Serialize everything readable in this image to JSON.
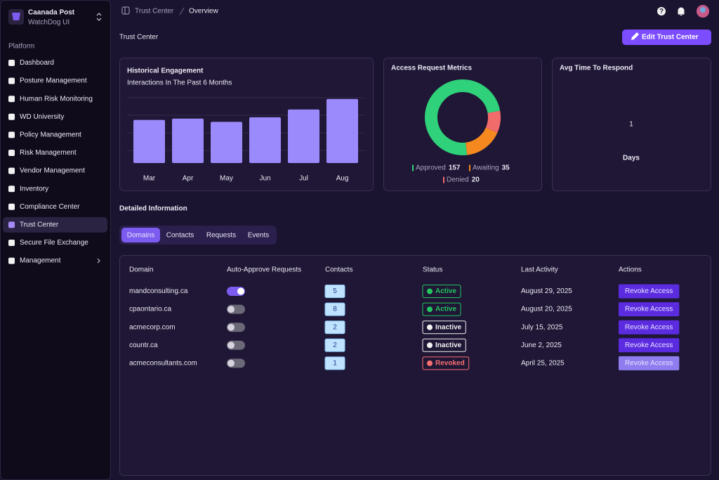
{
  "sidebar": {
    "org_name": "Caanada Post",
    "org_subtitle": "WatchDog UI",
    "section_label": "Platform",
    "nav": [
      {
        "label": "Dashboard",
        "active": false
      },
      {
        "label": "Posture Management",
        "active": false
      },
      {
        "label": "Human Risk Monitoring",
        "active": false
      },
      {
        "label": "WD University",
        "active": false
      },
      {
        "label": "Policy Management",
        "active": false
      },
      {
        "label": "Risk Management",
        "active": false
      },
      {
        "label": "Vendor Management",
        "active": false
      },
      {
        "label": "Inventory",
        "active": false
      },
      {
        "label": "Compliance Center",
        "active": false
      },
      {
        "label": "Trust Center",
        "active": true
      },
      {
        "label": "Secure File Exchange",
        "active": false
      },
      {
        "label": "Management",
        "active": false
      }
    ]
  },
  "topbar": {
    "breadcrumb": [
      "Trust Center",
      "Overview"
    ]
  },
  "header": {
    "title": "Trust Center",
    "button": "Edit Trust Center"
  },
  "chart_data": [
    {
      "type": "bar",
      "title": "Historical Engagement",
      "subtitle": "Interactions In The Past 6 Months",
      "categories": [
        "Mar",
        "Apr",
        "May",
        "Jun",
        "Jul",
        "Aug"
      ],
      "values": [
        66,
        68,
        63,
        70,
        82,
        98
      ],
      "color": "#9b8afb",
      "ylim": [
        0,
        100
      ]
    },
    {
      "type": "donut",
      "title": "Access Request Metrics",
      "categories": [
        "Approved",
        "Awaiting",
        "Denied"
      ],
      "values": [
        157,
        35,
        20
      ],
      "colors": [
        "#2fd17a",
        "#f5891f",
        "#f26b6b"
      ]
    }
  ],
  "avg_response": {
    "title": "Avg Time To Respond",
    "value": 1,
    "unit": "Days"
  },
  "details": {
    "title": "Detailed Information",
    "tabs": [
      {
        "label": "Domains",
        "active": true
      },
      {
        "label": "Contacts",
        "active": false
      },
      {
        "label": "Requests",
        "active": false
      },
      {
        "label": "Events",
        "active": false
      }
    ],
    "table": {
      "headers": [
        "Domain",
        "Auto-Approve Requests",
        "Contacts",
        "Status",
        "Last Activity",
        "Actions"
      ],
      "rows": [
        {
          "domain": "mandconsulting.ca",
          "auto_approve": true,
          "contacts": 5,
          "status": "Active",
          "status_color": "#22c55e",
          "last_activity": "August 29, 2025",
          "action": "Revoke Access",
          "action_color": "#5b2be0"
        },
        {
          "domain": "cpaontario.ca",
          "auto_approve": false,
          "contacts": 8,
          "status": "Active",
          "status_color": "#22c55e",
          "last_activity": "August 20, 2025",
          "action": "Revoke Access",
          "action_color": "#5b2be0"
        },
        {
          "domain": "acmecorp.com",
          "auto_approve": false,
          "contacts": 2,
          "status": "Inactive",
          "status_color": "#f2f2f2",
          "last_activity": "July 15, 2025",
          "action": "Revoke Access",
          "action_color": "#5b2be0"
        },
        {
          "domain": "countr.ca",
          "auto_approve": false,
          "contacts": 2,
          "status": "Inactive",
          "status_color": "#f2f2f2",
          "last_activity": "June 2, 2025",
          "action": "Revoke Access",
          "action_color": "#5b2be0"
        },
        {
          "domain": "acmeconsultants.com",
          "auto_approve": false,
          "contacts": 1,
          "status": "Revoked",
          "status_color": "#f87171",
          "last_activity": "April 25, 2025",
          "action": "Revoke Access",
          "action_color": "#8f7df0"
        }
      ]
    }
  }
}
